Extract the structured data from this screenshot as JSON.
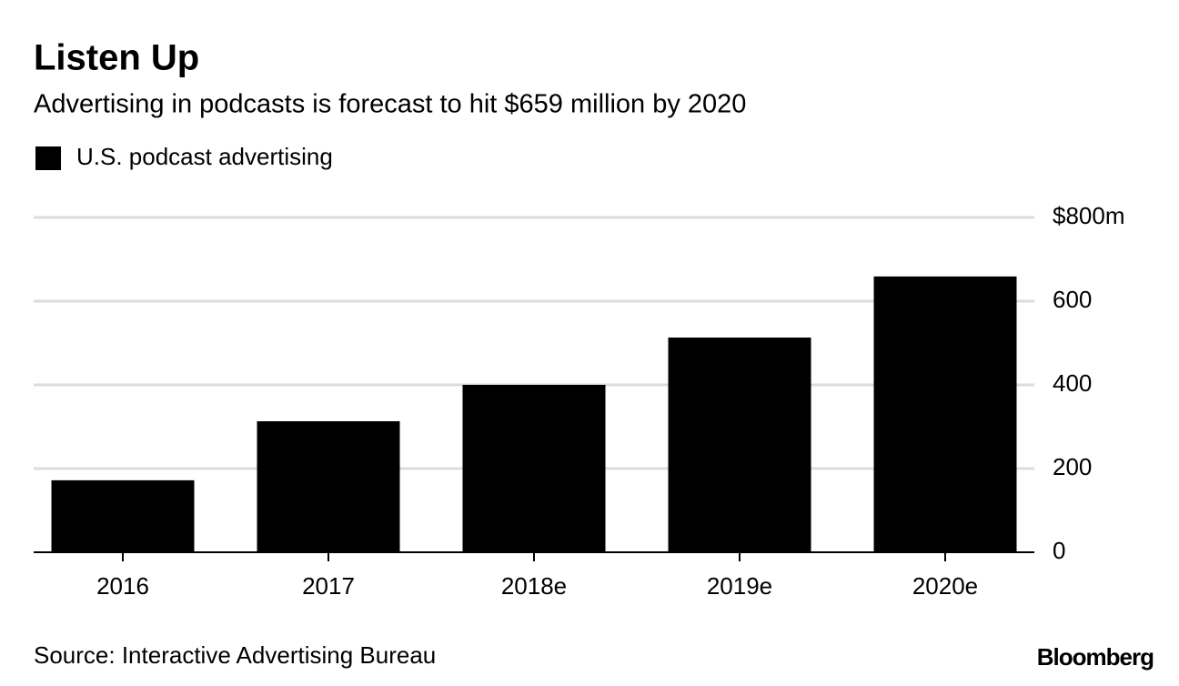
{
  "chart_data": {
    "type": "bar",
    "title": "Listen Up",
    "subtitle": "Advertising in podcasts is forecast to hit $659 million by 2020",
    "categories": [
      "2016",
      "2017",
      "2018e",
      "2019e",
      "2020e"
    ],
    "series": [
      {
        "name": "U.S. podcast advertising",
        "color": "#000000",
        "values": [
          172,
          313,
          400,
          513,
          659
        ]
      }
    ],
    "ylim": [
      0,
      800
    ],
    "yticks": [
      0,
      200,
      400,
      600,
      {
        "value": 800,
        "label": "$800m"
      }
    ],
    "grid": true,
    "legend": "top-left",
    "source": "Source: Interactive Advertising Bureau",
    "brand": "Bloomberg"
  }
}
